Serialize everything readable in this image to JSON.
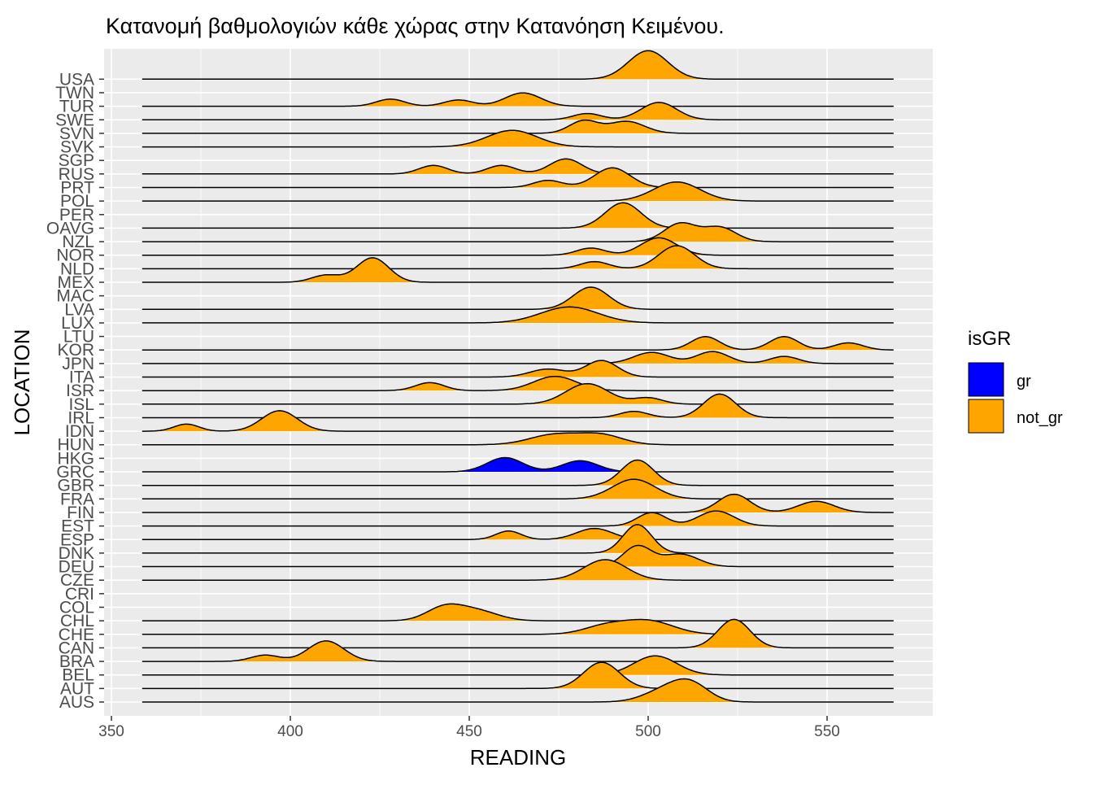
{
  "chart_data": {
    "type": "ridgeline",
    "title": "Κατανομή βαθμολογιών κάθε χώρας στην Κατανόηση Κειμένου.",
    "xlabel": "READING",
    "ylabel": "LOCATION",
    "xlim": [
      350,
      575
    ],
    "xticks": [
      350,
      400,
      450,
      500,
      550
    ],
    "baseline_range": [
      358.6,
      569
    ],
    "grid": true,
    "legend": {
      "title": "isGR",
      "position": "right",
      "entries": [
        {
          "label": "gr",
          "color": "#0000FF"
        },
        {
          "label": "not_gr",
          "color": "#FFA500"
        }
      ]
    },
    "categories": [
      "AUS",
      "AUT",
      "BEL",
      "BRA",
      "CAN",
      "CHE",
      "CHL",
      "COL",
      "CRI",
      "CZE",
      "DEU",
      "DNK",
      "ESP",
      "EST",
      "FIN",
      "FRA",
      "GBR",
      "GRC",
      "HKG",
      "HUN",
      "IDN",
      "IRL",
      "ISL",
      "ISR",
      "ITA",
      "JPN",
      "KOR",
      "LTU",
      "LUX",
      "LVA",
      "MAC",
      "MEX",
      "NLD",
      "NOR",
      "NZL",
      "OAVG",
      "PER",
      "POL",
      "PRT",
      "RUS",
      "SGP",
      "SVK",
      "SVN",
      "SWE",
      "TUR",
      "TWN",
      "USA"
    ],
    "series": [
      {
        "name": "AUS",
        "group": "not_gr",
        "modes": [
          [
            505,
            0.42,
            6
          ],
          [
            512,
            0.56,
            5
          ]
        ]
      },
      {
        "name": "AUT",
        "group": "not_gr",
        "modes": [
          [
            487,
            0.92,
            5
          ]
        ]
      },
      {
        "name": "BEL",
        "group": "not_gr",
        "modes": [
          [
            502,
            0.67,
            6
          ]
        ]
      },
      {
        "name": "BRA",
        "group": "not_gr",
        "modes": [
          [
            393,
            0.22,
            4
          ],
          [
            410,
            0.72,
            5
          ]
        ]
      },
      {
        "name": "CAN",
        "group": "not_gr",
        "modes": [
          [
            524,
            1.0,
            4.5
          ]
        ]
      },
      {
        "name": "CHE",
        "group": "not_gr",
        "modes": [
          [
            488,
            0.28,
            6
          ],
          [
            500,
            0.47,
            7
          ]
        ]
      },
      {
        "name": "CHL",
        "group": "not_gr",
        "modes": [
          [
            443,
            0.45,
            5
          ],
          [
            452,
            0.35,
            6
          ]
        ]
      },
      {
        "name": "CZE",
        "group": "not_gr",
        "modes": [
          [
            488,
            0.72,
            6
          ]
        ]
      },
      {
        "name": "DEU",
        "group": "not_gr",
        "modes": [
          [
            497,
            0.72,
            4
          ],
          [
            509,
            0.44,
            5
          ]
        ]
      },
      {
        "name": "DNK",
        "group": "not_gr",
        "modes": [
          [
            497,
            1.0,
            4
          ]
        ]
      },
      {
        "name": "ESP",
        "group": "not_gr",
        "modes": [
          [
            461,
            0.3,
            3.5
          ],
          [
            485,
            0.39,
            5
          ]
        ]
      },
      {
        "name": "EST",
        "group": "not_gr",
        "modes": [
          [
            501,
            0.47,
            4
          ],
          [
            519,
            0.53,
            5
          ]
        ]
      },
      {
        "name": "FIN",
        "group": "not_gr",
        "modes": [
          [
            524,
            0.64,
            4.5
          ],
          [
            547,
            0.39,
            5
          ]
        ]
      },
      {
        "name": "FRA",
        "group": "not_gr",
        "modes": [
          [
            496,
            0.69,
            6
          ]
        ]
      },
      {
        "name": "GBR",
        "group": "not_gr",
        "modes": [
          [
            497,
            0.89,
            4.5
          ]
        ]
      },
      {
        "name": "GRC",
        "group": "gr",
        "modes": [
          [
            460,
            0.5,
            5
          ],
          [
            481,
            0.39,
            5
          ]
        ]
      },
      {
        "name": "HUN",
        "group": "not_gr",
        "modes": [
          [
            474,
            0.36,
            7
          ],
          [
            487,
            0.33,
            6
          ]
        ]
      },
      {
        "name": "IDN",
        "group": "not_gr",
        "modes": [
          [
            371,
            0.25,
            3.5
          ],
          [
            397,
            0.72,
            5
          ]
        ]
      },
      {
        "name": "IRL",
        "group": "not_gr",
        "modes": [
          [
            496,
            0.22,
            4
          ],
          [
            520,
            0.83,
            4.5
          ]
        ]
      },
      {
        "name": "ISL",
        "group": "not_gr",
        "modes": [
          [
            483,
            0.72,
            6
          ],
          [
            500,
            0.22,
            4
          ]
        ]
      },
      {
        "name": "ISR",
        "group": "not_gr",
        "modes": [
          [
            439,
            0.28,
            4
          ],
          [
            474,
            0.5,
            6
          ]
        ]
      },
      {
        "name": "ITA",
        "group": "not_gr",
        "modes": [
          [
            472,
            0.28,
            5
          ],
          [
            487,
            0.58,
            4.5
          ]
        ]
      },
      {
        "name": "JPN",
        "group": "not_gr",
        "modes": [
          [
            501,
            0.39,
            5
          ],
          [
            518,
            0.42,
            4.5
          ],
          [
            538,
            0.25,
            4
          ]
        ]
      },
      {
        "name": "KOR",
        "group": "not_gr",
        "modes": [
          [
            516,
            0.47,
            4
          ],
          [
            538,
            0.47,
            4
          ],
          [
            556,
            0.25,
            4
          ]
        ]
      },
      {
        "name": "LUX",
        "group": "not_gr",
        "modes": [
          [
            478,
            0.56,
            8
          ]
        ]
      },
      {
        "name": "LVA",
        "group": "not_gr",
        "modes": [
          [
            484,
            0.78,
            5
          ]
        ]
      },
      {
        "name": "MEX",
        "group": "not_gr",
        "modes": [
          [
            410,
            0.25,
            4
          ],
          [
            423,
            0.86,
            4.5
          ]
        ]
      },
      {
        "name": "NLD",
        "group": "not_gr",
        "modes": [
          [
            485,
            0.25,
            4
          ],
          [
            508,
            0.81,
            5
          ]
        ]
      },
      {
        "name": "NOR",
        "group": "not_gr",
        "modes": [
          [
            484,
            0.25,
            4
          ],
          [
            503,
            0.61,
            5
          ]
        ]
      },
      {
        "name": "NZL",
        "group": "not_gr",
        "modes": [
          [
            509,
            0.64,
            4.5
          ],
          [
            520,
            0.5,
            4.5
          ]
        ]
      },
      {
        "name": "OAVG",
        "group": "not_gr",
        "modes": [
          [
            493,
            0.89,
            5
          ]
        ]
      },
      {
        "name": "POL",
        "group": "not_gr",
        "modes": [
          [
            508,
            0.67,
            6.5
          ]
        ]
      },
      {
        "name": "PRT",
        "group": "not_gr",
        "modes": [
          [
            472,
            0.25,
            4
          ],
          [
            490,
            0.69,
            5
          ]
        ]
      },
      {
        "name": "RUS",
        "group": "not_gr",
        "modes": [
          [
            440,
            0.3,
            4
          ],
          [
            459,
            0.3,
            4
          ],
          [
            477,
            0.53,
            4.5
          ]
        ]
      },
      {
        "name": "SVK",
        "group": "not_gr",
        "modes": [
          [
            462,
            0.58,
            7
          ]
        ]
      },
      {
        "name": "SVN",
        "group": "not_gr",
        "modes": [
          [
            482,
            0.44,
            4
          ],
          [
            494,
            0.42,
            5
          ]
        ]
      },
      {
        "name": "SWE",
        "group": "not_gr",
        "modes": [
          [
            483,
            0.22,
            4
          ],
          [
            503,
            0.61,
            5
          ]
        ]
      },
      {
        "name": "TUR",
        "group": "not_gr",
        "modes": [
          [
            428,
            0.25,
            4
          ],
          [
            447,
            0.22,
            4
          ],
          [
            465,
            0.47,
            5
          ]
        ]
      },
      {
        "name": "USA",
        "group": "not_gr",
        "modes": [
          [
            500,
            1.0,
            5.5
          ]
        ]
      }
    ]
  }
}
